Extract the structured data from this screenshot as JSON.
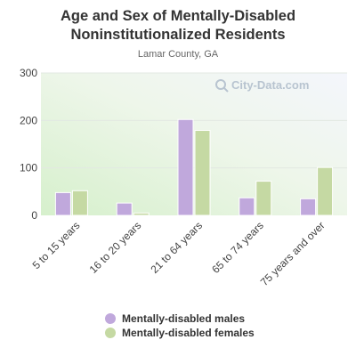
{
  "title": "Age and Sex of Mentally-Disabled Noninstitutionalized Residents",
  "subtitle": "Lamar County, GA",
  "watermark": "City-Data.com",
  "colors": {
    "males": "#c0a8dc",
    "females": "#c5d9a3"
  },
  "chart_data": {
    "type": "bar",
    "categories": [
      "5 to 15 years",
      "16 to 20 years",
      "21 to 64 years",
      "65 to 74 years",
      "75 years and over"
    ],
    "series": [
      {
        "name": "Mentally-disabled males",
        "values": [
          48,
          26,
          202,
          37,
          35
        ]
      },
      {
        "name": "Mentally-disabled females",
        "values": [
          52,
          5,
          179,
          72,
          101
        ]
      }
    ],
    "y_ticks": [
      "0",
      "100",
      "200",
      "300"
    ],
    "ylim": [
      0,
      300
    ],
    "grid": true,
    "legend": "bottom"
  }
}
